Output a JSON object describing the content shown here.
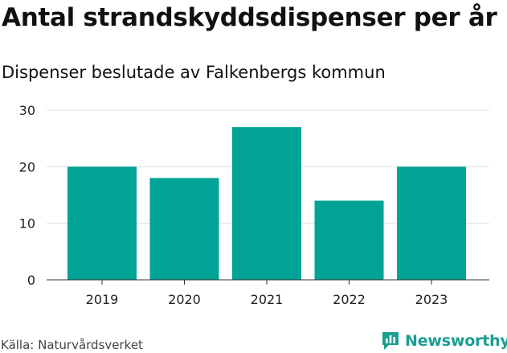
{
  "header": {
    "title": "Antal strandskyddsdispenser per år",
    "subtitle": "Dispenser beslutade av Falkenbergs kommun"
  },
  "footer": {
    "source": "Källa: Naturvårdsverket",
    "brand": "Newsworthy"
  },
  "colors": {
    "bar": "#00a396",
    "brand": "#1a9e8f"
  },
  "chart_data": {
    "type": "bar",
    "title": "Antal strandskyddsdispenser per år",
    "subtitle": "Dispenser beslutade av Falkenbergs kommun",
    "categories": [
      "2019",
      "2020",
      "2021",
      "2022",
      "2023"
    ],
    "values": [
      20,
      18,
      27,
      14,
      20
    ],
    "ylim": [
      0,
      30
    ],
    "yticks": [
      0,
      10,
      20,
      30
    ],
    "grid": true,
    "legend": "none"
  }
}
